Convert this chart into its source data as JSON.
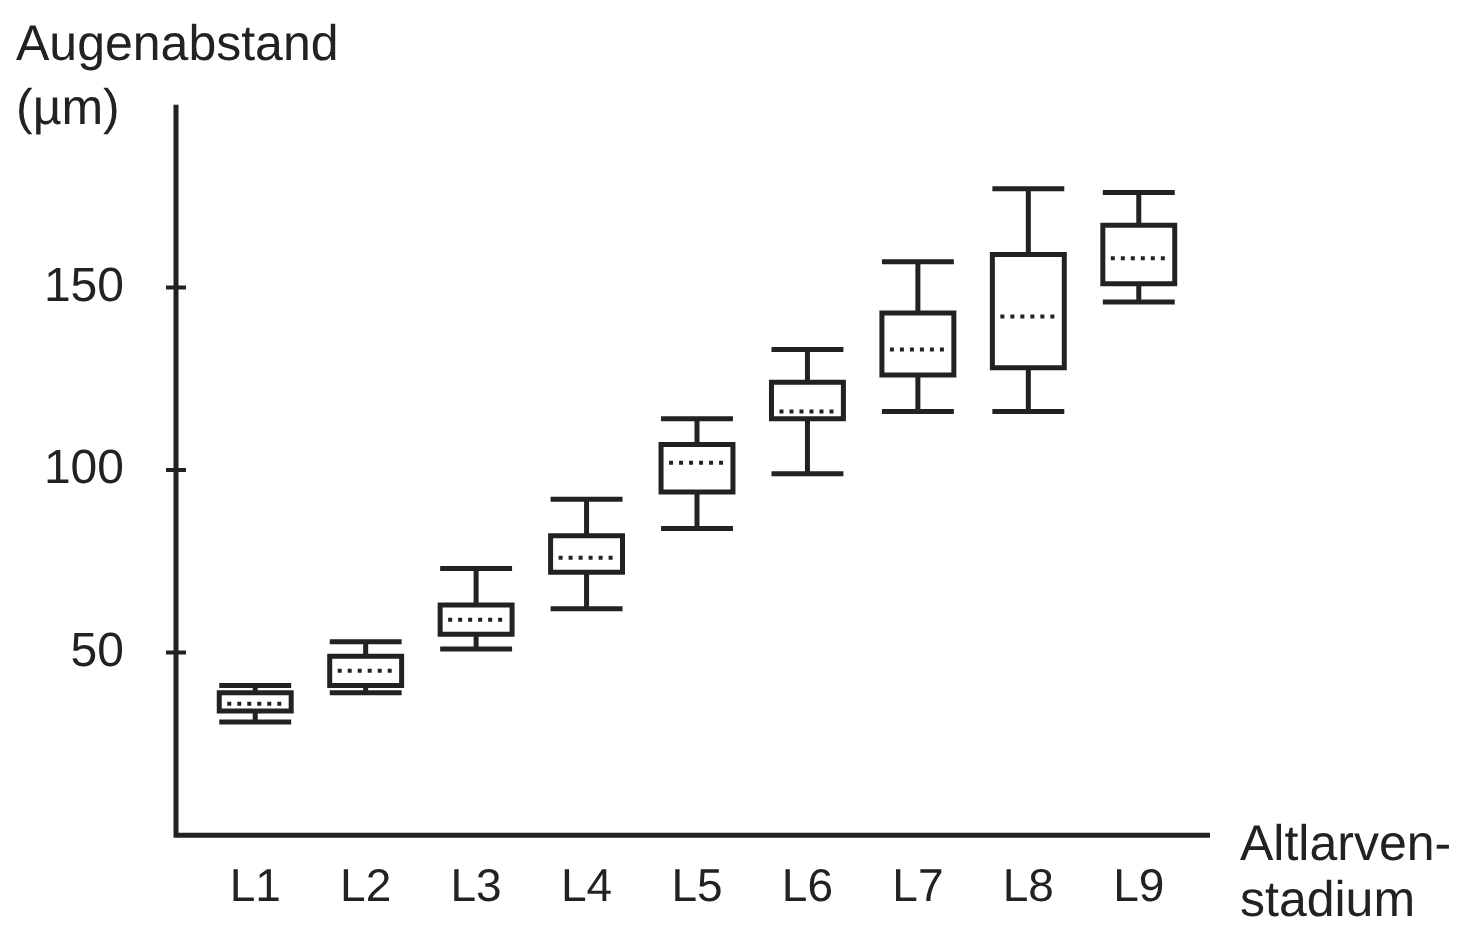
{
  "chart_data": {
    "type": "box",
    "ylabel": "Augenabstand (µm)",
    "xlabel": "Altlarven-stadium",
    "categories": [
      "L1",
      "L2",
      "L3",
      "L4",
      "L5",
      "L6",
      "L7",
      "L8",
      "L9"
    ],
    "boxes": [
      {
        "low": 31,
        "q1": 34,
        "median": 36,
        "q3": 39,
        "high": 41
      },
      {
        "low": 39,
        "q1": 41,
        "median": 45,
        "q3": 49,
        "high": 53
      },
      {
        "low": 51,
        "q1": 55,
        "median": 59,
        "q3": 63,
        "high": 73
      },
      {
        "low": 62,
        "q1": 72,
        "median": 76,
        "q3": 82,
        "high": 92
      },
      {
        "low": 84,
        "q1": 94,
        "median": 102,
        "q3": 107,
        "high": 114
      },
      {
        "low": 99,
        "q1": 114,
        "median": 116,
        "q3": 124,
        "high": 133
      },
      {
        "low": 116,
        "q1": 126,
        "median": 133,
        "q3": 143,
        "high": 157
      },
      {
        "low": 116,
        "q1": 128,
        "median": 142,
        "q3": 159,
        "high": 177
      },
      {
        "low": 146,
        "q1": 151,
        "median": 158,
        "q3": 167,
        "high": 176
      }
    ],
    "color": "#222222",
    "ylim": [
      0,
      200
    ],
    "yticks": [
      50,
      100,
      150
    ]
  }
}
